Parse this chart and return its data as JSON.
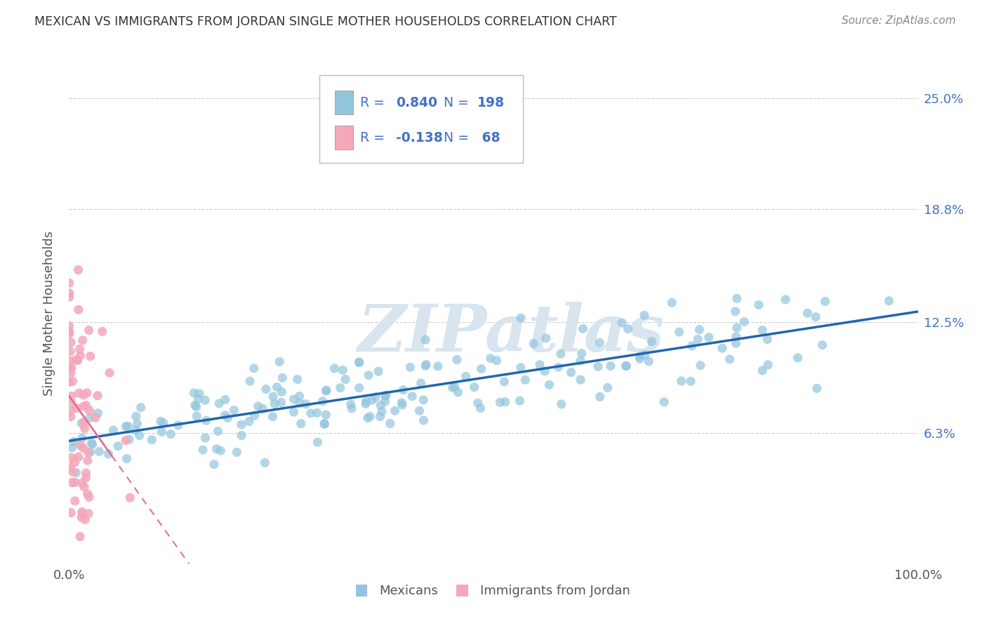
{
  "title": "MEXICAN VS IMMIGRANTS FROM JORDAN SINGLE MOTHER HOUSEHOLDS CORRELATION CHART",
  "source": "Source: ZipAtlas.com",
  "ylabel": "Single Mother Households",
  "ytick_labels": [
    "6.3%",
    "12.5%",
    "18.8%",
    "25.0%"
  ],
  "ytick_values": [
    0.063,
    0.125,
    0.188,
    0.25
  ],
  "legend_label1": "Mexicans",
  "legend_label2": "Immigrants from Jordan",
  "color_blue": "#92c5de",
  "color_pink": "#f4a7b9",
  "trendline_blue": "#2166ac",
  "trendline_pink": "#e07090",
  "watermark_text": "ZIPatlas",
  "watermark_color": "#d8e4ee",
  "background_color": "#ffffff",
  "grid_color": "#cccccc",
  "xmin": 0.0,
  "xmax": 1.0,
  "ymin": -0.01,
  "ymax": 0.27,
  "R1": 0.84,
  "N1": 198,
  "R2": -0.138,
  "N2": 68,
  "legend_text_color": "#4472c4",
  "title_color": "#333333",
  "source_color": "#888888",
  "axis_label_color": "#555555",
  "tick_color": "#555555"
}
